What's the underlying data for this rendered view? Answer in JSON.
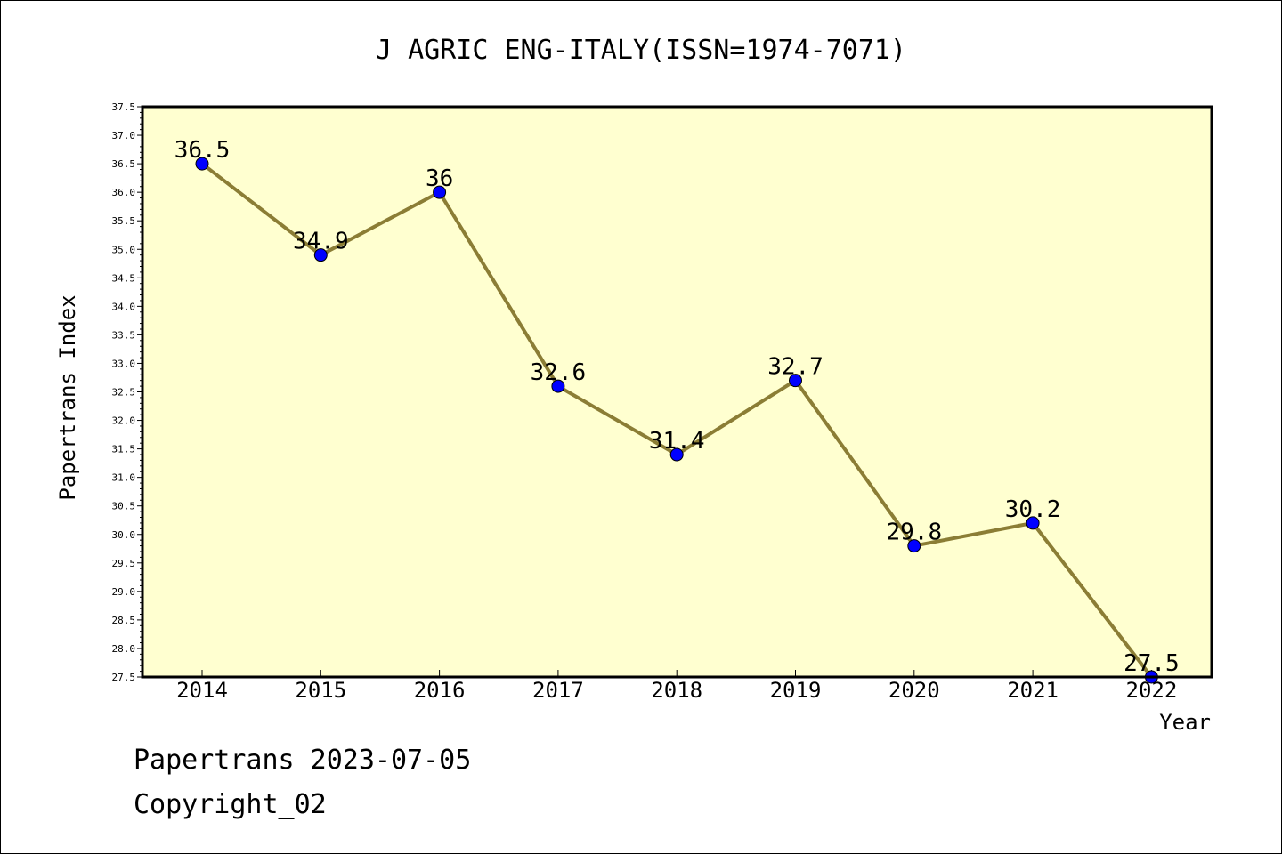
{
  "chart_data": {
    "type": "line",
    "title": "J AGRIC ENG-ITALY(ISSN=1974-7071)",
    "xlabel": "Year",
    "ylabel": "Papertrans Index",
    "ylim": [
      27.5,
      37.5
    ],
    "yticks": [
      "27.5",
      "28.0",
      "28.5",
      "29.0",
      "29.5",
      "30.0",
      "30.5",
      "31.0",
      "31.5",
      "32.0",
      "32.5",
      "33.0",
      "33.5",
      "34.0",
      "34.5",
      "35.0",
      "35.5",
      "36.0",
      "36.5",
      "37.0",
      "37.5"
    ],
    "x": [
      "2014",
      "2015",
      "2016",
      "2017",
      "2018",
      "2019",
      "2020",
      "2021",
      "2022"
    ],
    "values": [
      36.5,
      34.9,
      36,
      32.6,
      31.4,
      32.7,
      29.8,
      30.2,
      27.5
    ],
    "data_labels": [
      "36.5",
      "34.9",
      "36",
      "32.6",
      "31.4",
      "32.7",
      "29.8",
      "30.2",
      "27.5"
    ],
    "colors": {
      "plot_bg": "#ffffd0",
      "line": "#8b7d35",
      "marker": "#0000ff"
    },
    "grid": false,
    "legend": "none"
  },
  "footer": {
    "line1": "Papertrans 2023-07-05",
    "line2": "Copyright_02"
  }
}
